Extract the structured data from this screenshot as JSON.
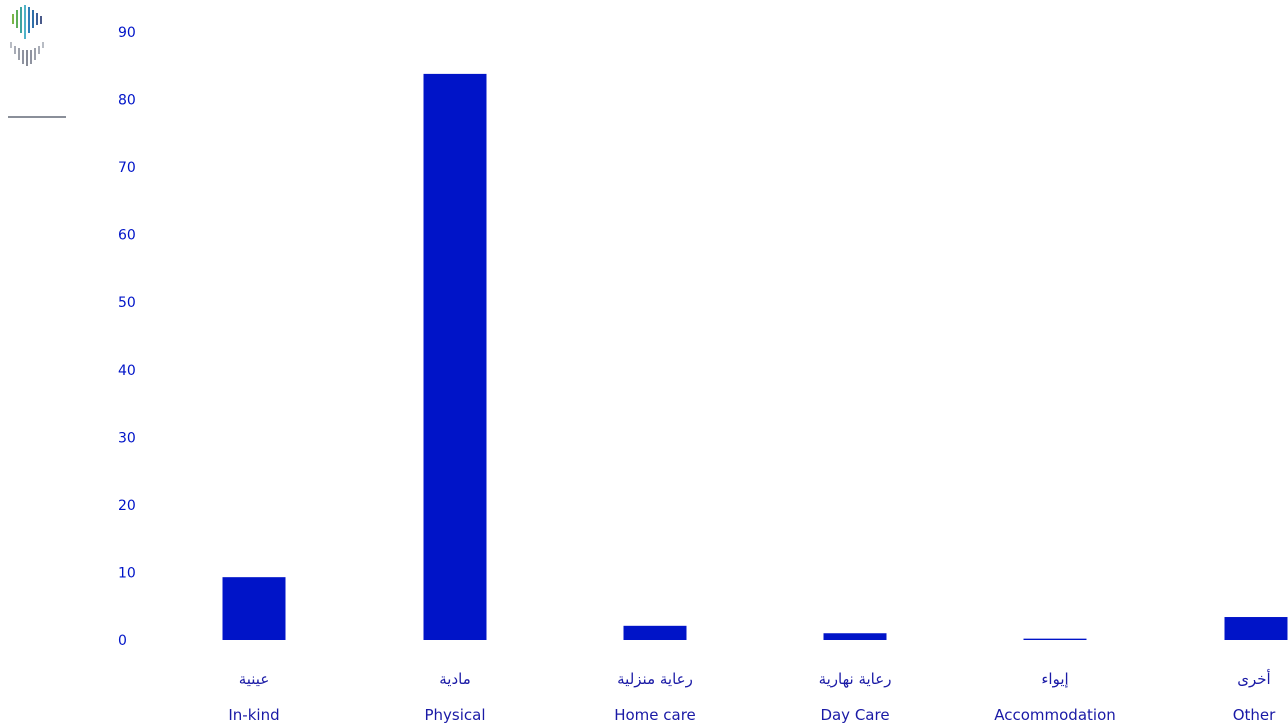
{
  "chart_data": {
    "type": "bar",
    "title": "",
    "xlabel": "",
    "ylabel": "",
    "categories": [
      {
        "ar": "عينية",
        "en": "In-kind"
      },
      {
        "ar": "مادية",
        "en": "Physical"
      },
      {
        "ar": "رعاية منزلية",
        "en": "Home care"
      },
      {
        "ar": "رعاية نهارية",
        "en": "Day Care"
      },
      {
        "ar": "إيواء",
        "en": "Accommodation"
      },
      {
        "ar": "أخرى",
        "en": "Other"
      }
    ],
    "values": [
      9.3,
      83.8,
      2.1,
      1.0,
      0.2,
      3.4
    ],
    "ylim": [
      0,
      90
    ],
    "yticks": [
      "0",
      "10",
      "20",
      "30",
      "40",
      "50",
      "60",
      "70",
      "80",
      "90"
    ],
    "grid": false,
    "colors": {
      "bar": "#0014c8",
      "axis_text": "#0014c8",
      "category_text": "#1a1aa6"
    }
  }
}
